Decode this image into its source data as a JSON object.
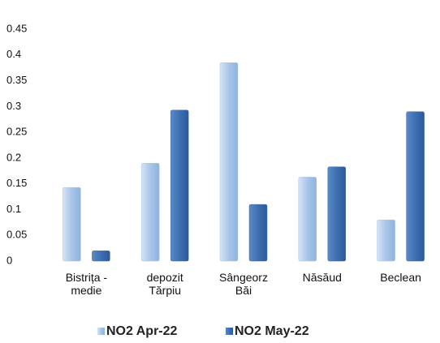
{
  "chart_data": {
    "type": "bar",
    "categories": [
      "Bistrița -\nmedie",
      "depozit\nTărpiu",
      "Sângeorz\nBăi",
      "Năsăud",
      "Beclean"
    ],
    "series": [
      {
        "name": "NO2 Apr-22",
        "color": "#a8c5e8",
        "values": [
          0.143,
          0.19,
          0.385,
          0.163,
          0.08
        ]
      },
      {
        "name": "NO2 May-22",
        "color": "#3d6fb2",
        "values": [
          0.02,
          0.293,
          0.11,
          0.183,
          0.29
        ]
      }
    ],
    "ylim": [
      0,
      0.45
    ],
    "yticks": [
      0,
      0.05,
      0.1,
      0.15,
      0.2,
      0.25,
      0.3,
      0.35,
      0.4,
      0.45
    ],
    "grid": false
  }
}
